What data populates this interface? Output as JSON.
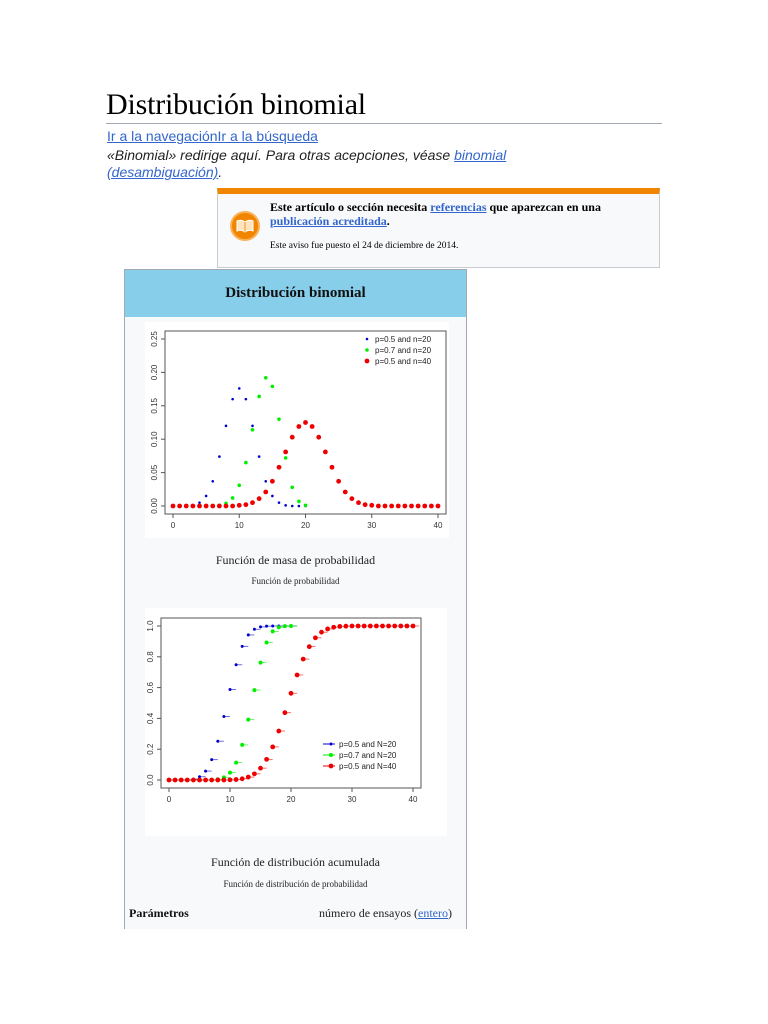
{
  "page": {
    "title": "Distribución binomial",
    "jumplinks": {
      "navigation": "Ir a la navegación",
      "search": "Ir a la búsqueda"
    },
    "hatnote": {
      "text": "«Binomial» redirige aquí. Para otras acepciones, véase ",
      "link": "binomial (desambiguación)",
      "end": "."
    }
  },
  "ambox": {
    "icon": "book-icon",
    "accent_color": "#f28500",
    "text_pre": "Este artículo o sección necesita ",
    "link1": "referencias",
    "text_mid": " que aparezcan en una ",
    "link2": "publicación acreditada",
    "text_end": ".",
    "notice": "Este aviso fue puesto el 24 de diciembre de 2014."
  },
  "infobox": {
    "header": "Distribución binomial",
    "header_color": "#87ceeb",
    "pmf_caption": "Función de masa de probabilidad",
    "pmf_subcaption": "Función de probabilidad",
    "cdf_caption": "Función de distribución acumulada",
    "cdf_subcaption": "Función de distribución de probabilidad",
    "param_label": "Parámetros",
    "param_value_pre": "número de ensayos (",
    "param_value_link": "entero",
    "param_value_post": ")"
  },
  "chart_data": [
    {
      "type": "scatter",
      "title": "Función de masa de probabilidad",
      "xlabel": "",
      "ylabel": "",
      "xlim": [
        0,
        40
      ],
      "ylim": [
        0,
        0.25
      ],
      "xticks": [
        0,
        10,
        20,
        30,
        40
      ],
      "yticks": [
        "0.00",
        "0.05",
        "0.10",
        "0.15",
        "0.20",
        "0.25"
      ],
      "legend_position": "top-right",
      "series": [
        {
          "name": "p=0.5 and n=20",
          "color": "#0000cc",
          "x": [
            0,
            1,
            2,
            3,
            4,
            5,
            6,
            7,
            8,
            9,
            10,
            11,
            12,
            13,
            14,
            15,
            16,
            17,
            18,
            19,
            20
          ],
          "values": [
            0,
            0,
            0,
            0.001,
            0.005,
            0.015,
            0.037,
            0.074,
            0.12,
            0.16,
            0.176,
            0.16,
            0.12,
            0.074,
            0.037,
            0.015,
            0.005,
            0.001,
            0,
            0,
            0
          ]
        },
        {
          "name": "p=0.7 and n=20",
          "color": "#00ee00",
          "x": [
            0,
            1,
            2,
            3,
            4,
            5,
            6,
            7,
            8,
            9,
            10,
            11,
            12,
            13,
            14,
            15,
            16,
            17,
            18,
            19,
            20
          ],
          "values": [
            0,
            0,
            0,
            0,
            0,
            0,
            0,
            0.001,
            0.004,
            0.012,
            0.031,
            0.065,
            0.114,
            0.164,
            0.192,
            0.179,
            0.13,
            0.072,
            0.028,
            0.007,
            0.001
          ]
        },
        {
          "name": "p=0.5 and n=40",
          "color": "#ee0000",
          "x": [
            0,
            1,
            2,
            3,
            4,
            5,
            6,
            7,
            8,
            9,
            10,
            11,
            12,
            13,
            14,
            15,
            16,
            17,
            18,
            19,
            20,
            21,
            22,
            23,
            24,
            25,
            26,
            27,
            28,
            29,
            30,
            31,
            32,
            33,
            34,
            35,
            36,
            37,
            38,
            39,
            40
          ],
          "values": [
            0,
            0,
            0,
            0,
            0,
            0,
            0,
            0,
            0,
            0,
            0.001,
            0.002,
            0.005,
            0.011,
            0.021,
            0.037,
            0.058,
            0.081,
            0.103,
            0.119,
            0.125,
            0.119,
            0.103,
            0.081,
            0.058,
            0.037,
            0.021,
            0.011,
            0.005,
            0.002,
            0.001,
            0,
            0,
            0,
            0,
            0,
            0,
            0,
            0,
            0,
            0
          ]
        }
      ]
    },
    {
      "type": "line",
      "title": "Función de distribución acumulada",
      "xlabel": "",
      "ylabel": "",
      "xlim": [
        0,
        40
      ],
      "ylim": [
        0,
        1
      ],
      "xticks": [
        0,
        10,
        20,
        30,
        40
      ],
      "yticks": [
        "0.0",
        "0.2",
        "0.4",
        "0.6",
        "0.8",
        "1.0"
      ],
      "legend_position": "bottom-right",
      "series": [
        {
          "name": "p=0.5 and N=20",
          "color": "#0000cc",
          "x": [
            0,
            1,
            2,
            3,
            4,
            5,
            6,
            7,
            8,
            9,
            10,
            11,
            12,
            13,
            14,
            15,
            16,
            17,
            18,
            19,
            20
          ],
          "values": [
            0,
            0,
            0,
            0.001,
            0.006,
            0.021,
            0.058,
            0.132,
            0.252,
            0.412,
            0.588,
            0.748,
            0.868,
            0.942,
            0.979,
            0.994,
            0.999,
            1,
            1,
            1,
            1
          ]
        },
        {
          "name": "p=0.7 and N=20",
          "color": "#00ee00",
          "x": [
            0,
            1,
            2,
            3,
            4,
            5,
            6,
            7,
            8,
            9,
            10,
            11,
            12,
            13,
            14,
            15,
            16,
            17,
            18,
            19,
            20
          ],
          "values": [
            0,
            0,
            0,
            0,
            0,
            0,
            0,
            0.001,
            0.005,
            0.017,
            0.048,
            0.113,
            0.228,
            0.392,
            0.584,
            0.762,
            0.893,
            0.965,
            0.992,
            0.999,
            1
          ]
        },
        {
          "name": "p=0.5 and N=40",
          "color": "#ee0000",
          "x": [
            0,
            1,
            2,
            3,
            4,
            5,
            6,
            7,
            8,
            9,
            10,
            11,
            12,
            13,
            14,
            15,
            16,
            17,
            18,
            19,
            20,
            21,
            22,
            23,
            24,
            25,
            26,
            27,
            28,
            29,
            30,
            31,
            32,
            33,
            34,
            35,
            36,
            37,
            38,
            39,
            40
          ],
          "values": [
            0,
            0,
            0,
            0,
            0,
            0,
            0,
            0,
            0,
            0,
            0.001,
            0.003,
            0.008,
            0.019,
            0.04,
            0.077,
            0.134,
            0.215,
            0.318,
            0.437,
            0.563,
            0.682,
            0.785,
            0.866,
            0.923,
            0.96,
            0.981,
            0.992,
            0.997,
            0.999,
            1,
            1,
            1,
            1,
            1,
            1,
            1,
            1,
            1,
            1,
            1
          ]
        }
      ]
    }
  ]
}
